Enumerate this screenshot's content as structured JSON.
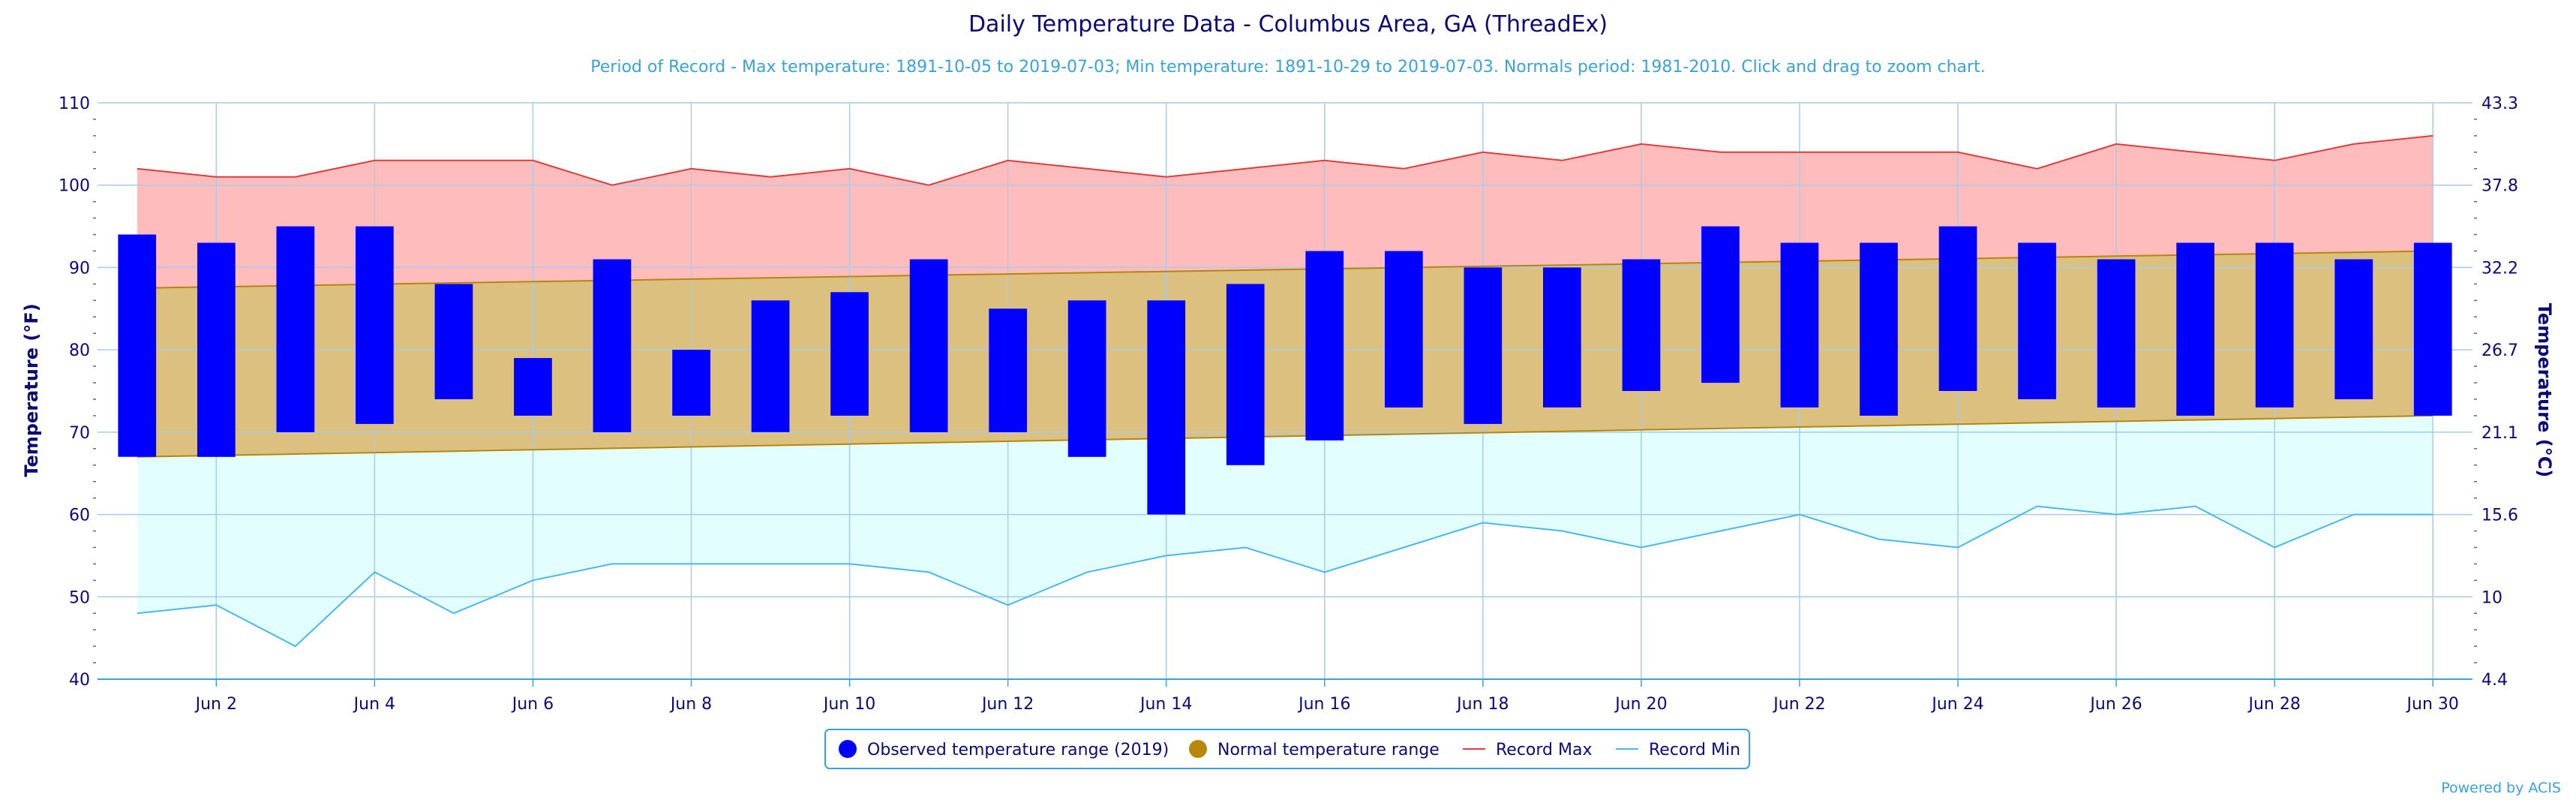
{
  "chart_data": {
    "type": "bar",
    "title": "Daily Temperature Data - Columbus Area, GA (ThreadEx)",
    "subtitle": "Period of Record - Max temperature: 1891-10-05 to 2019-07-03; Min temperature: 1891-10-29 to 2019-07-03. Normals period: 1981-2010. Click and drag to zoom chart.",
    "ylabel": "Temperature (°F)",
    "y2label": "Temperature (°C)",
    "ylim": [
      40,
      110
    ],
    "yticks": [
      40,
      50,
      60,
      70,
      80,
      90,
      100,
      110
    ],
    "y2ticks": [
      "4.4",
      "10",
      "15.6",
      "21.1",
      "26.7",
      "32.2",
      "37.8",
      "43.3"
    ],
    "xticks": [
      "Jun 2",
      "Jun 4",
      "Jun 6",
      "Jun 8",
      "Jun 10",
      "Jun 12",
      "Jun 14",
      "Jun 16",
      "Jun 18",
      "Jun 20",
      "Jun 22",
      "Jun 24",
      "Jun 26",
      "Jun 28",
      "Jun 30"
    ],
    "days": [
      1,
      2,
      3,
      4,
      5,
      6,
      7,
      8,
      9,
      10,
      11,
      12,
      13,
      14,
      15,
      16,
      17,
      18,
      19,
      20,
      21,
      22,
      23,
      24,
      25,
      26,
      27,
      28,
      29,
      30
    ],
    "observed_low": [
      67,
      67,
      70,
      71,
      74,
      72,
      70,
      72,
      70,
      72,
      70,
      70,
      67,
      60,
      66,
      69,
      73,
      71,
      73,
      75,
      76,
      73,
      72,
      75,
      74,
      73,
      72,
      73,
      74,
      72
    ],
    "observed_high": [
      94,
      93,
      95,
      95,
      88,
      79,
      91,
      80,
      86,
      87,
      91,
      85,
      86,
      86,
      88,
      92,
      92,
      90,
      90,
      91,
      95,
      93,
      93,
      95,
      93,
      91,
      93,
      93,
      91,
      93
    ],
    "normal_low_start": 67,
    "normal_low_end": 72,
    "normal_high_start": 87.5,
    "normal_high_end": 92,
    "record_max": [
      102,
      101,
      101,
      103,
      103,
      103,
      100,
      102,
      101,
      102,
      100,
      103,
      102,
      101,
      102,
      103,
      102,
      104,
      103,
      105,
      104,
      104,
      104,
      104,
      102,
      105,
      104,
      103,
      105,
      106
    ],
    "record_min": [
      48,
      49,
      44,
      53,
      48,
      52,
      54,
      54,
      54,
      54,
      53,
      49,
      53,
      55,
      56,
      53,
      56,
      59,
      58,
      56,
      58,
      60,
      57,
      56,
      61,
      60,
      61,
      56,
      60,
      60
    ],
    "grid": true,
    "legend_position": "bottom-center",
    "legend": [
      {
        "label": "Observed temperature range (2019)",
        "marker": "circle",
        "color": "#0000ff"
      },
      {
        "label": "Normal temperature range",
        "marker": "circle",
        "color": "#b8860b"
      },
      {
        "label": "Record Max",
        "marker": "line",
        "color": "#e03c3c"
      },
      {
        "label": "Record Min",
        "marker": "line",
        "color": "#4ab8e8"
      }
    ],
    "colors": {
      "observed": "#0000ff",
      "normal_fill": "#dcc080",
      "normal_line": "#b8860b",
      "record_max_line": "#e03c3c",
      "record_max_fill": "#ffbcbc",
      "record_min_line": "#4ab8e8",
      "record_min_fill": "#e2feff"
    }
  },
  "credit": "Powered by ACIS"
}
